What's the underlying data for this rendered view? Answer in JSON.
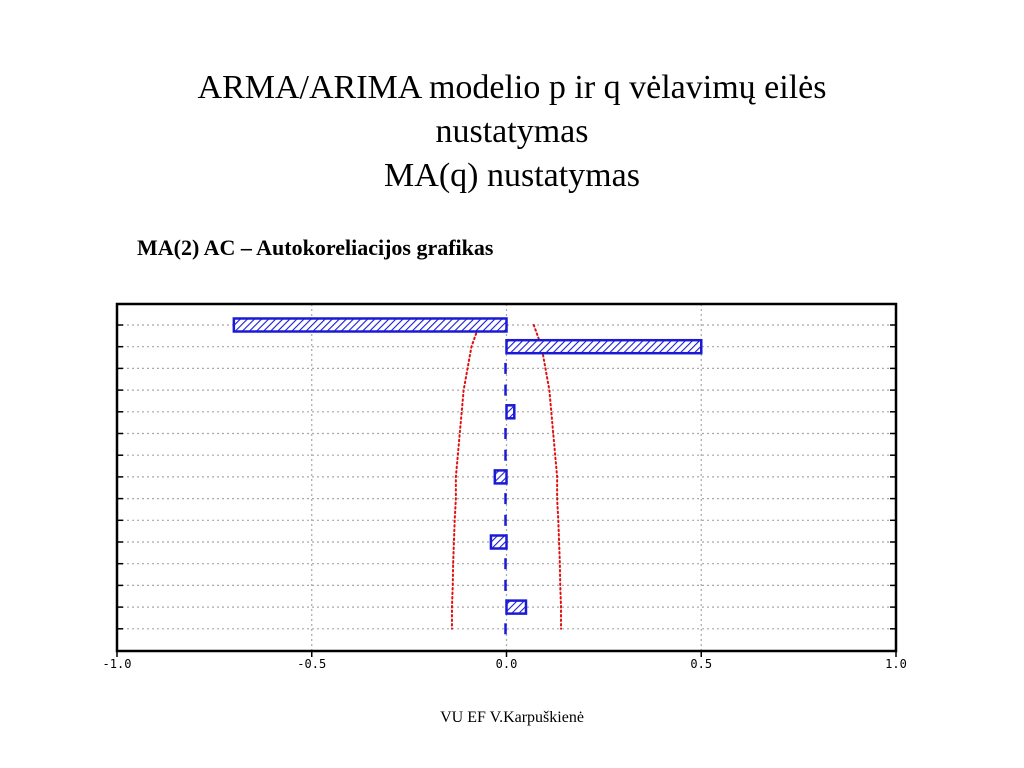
{
  "slide": {
    "title_lines": [
      "ARMA/ARIMA modelio p ir q vėlavimų eilės",
      "nustatymas",
      "MA(q) nustatymas"
    ],
    "subtitle": "MA(2) AC – Autokoreliacijos grafikas",
    "footer": "VU EF V.Karpuškienė"
  },
  "colors": {
    "bar": "#1a1ad6",
    "confidence": "#e01010",
    "grid": "#a8a8a8",
    "frame": "#000000"
  },
  "chart_data": {
    "type": "bar",
    "orientation": "horizontal",
    "lags": [
      1,
      2,
      3,
      4,
      5,
      6,
      7,
      8,
      9,
      10,
      11,
      12,
      13,
      14,
      15
    ],
    "values": [
      -0.7,
      0.5,
      0.0,
      -0.01,
      0.02,
      0.0,
      -0.01,
      -0.03,
      0.01,
      0.0,
      -0.04,
      0.01,
      -0.01,
      0.05,
      0.0
    ],
    "xlim": [
      -1.0,
      1.0
    ],
    "xticks": [
      "-1.0",
      "-0.5",
      "0.0",
      "0.5",
      "1.0"
    ],
    "confidence_bounds": {
      "upper": [
        0.07,
        0.09,
        0.1,
        0.11,
        0.115,
        0.12,
        0.125,
        0.13,
        0.13,
        0.133,
        0.135,
        0.137,
        0.138,
        0.14,
        0.14
      ],
      "lower": [
        -0.07,
        -0.09,
        -0.1,
        -0.11,
        -0.115,
        -0.12,
        -0.125,
        -0.13,
        -0.13,
        -0.133,
        -0.135,
        -0.137,
        -0.138,
        -0.14,
        -0.14
      ]
    },
    "grid": true,
    "title": "",
    "xlabel": "",
    "ylabel": ""
  }
}
